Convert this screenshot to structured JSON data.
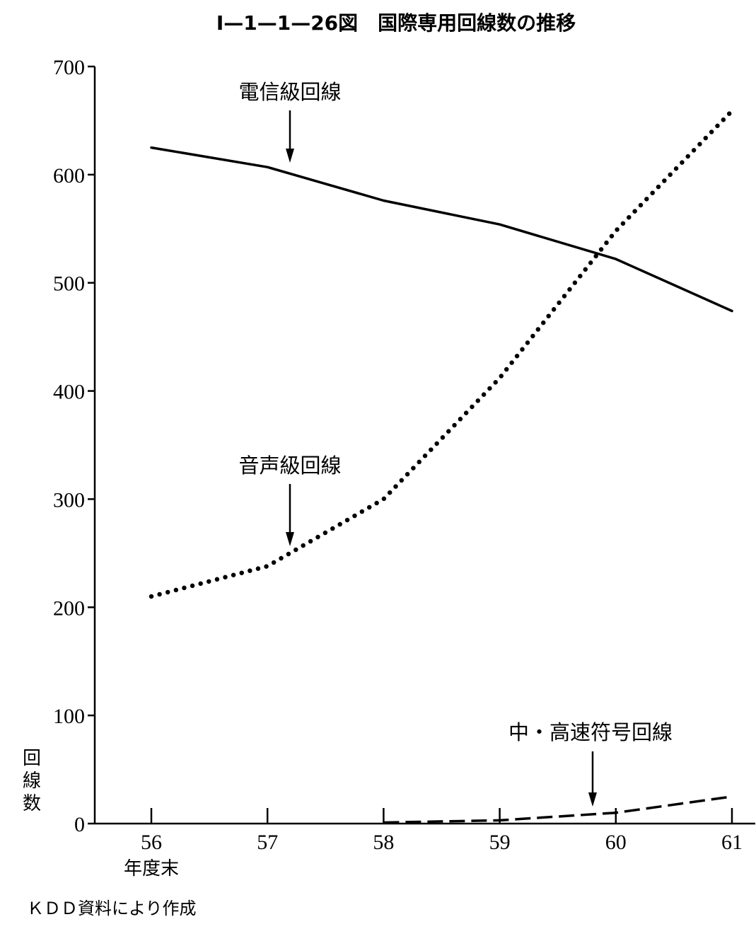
{
  "chart_data": {
    "type": "line",
    "title": "Ⅰ—1—1—26図　国際専用回線数の推移",
    "xlabel": "年度末",
    "ylabel": "回線数",
    "x": [
      "56",
      "57",
      "58",
      "59",
      "60",
      "61"
    ],
    "ylim": [
      0,
      700
    ],
    "yticks": [
      "0",
      "100",
      "200",
      "300",
      "400",
      "500",
      "600",
      "700"
    ],
    "series": [
      {
        "name": "電信級回線",
        "style": "solid",
        "values": [
          625,
          607,
          576,
          554,
          522,
          474
        ]
      },
      {
        "name": "音声級回線",
        "style": "dotted",
        "values": [
          210,
          238,
          300,
          412,
          548,
          659
        ]
      },
      {
        "name": "中・高速符号回線",
        "style": "dashed",
        "values": [
          0,
          0,
          1,
          3,
          10,
          25
        ]
      }
    ],
    "annotations": [
      {
        "text": "電信級回線",
        "target_series": 0,
        "target_x": 57.2,
        "target_y": 601
      },
      {
        "text": "音声級回線",
        "target_series": 1,
        "target_x": 57.2,
        "target_y": 250
      },
      {
        "text": "中・高速符号回線",
        "target_series": 2,
        "target_x": 59.8,
        "target_y": 9
      }
    ],
    "grid": false,
    "source": "ＫＤＤ資料により作成"
  }
}
